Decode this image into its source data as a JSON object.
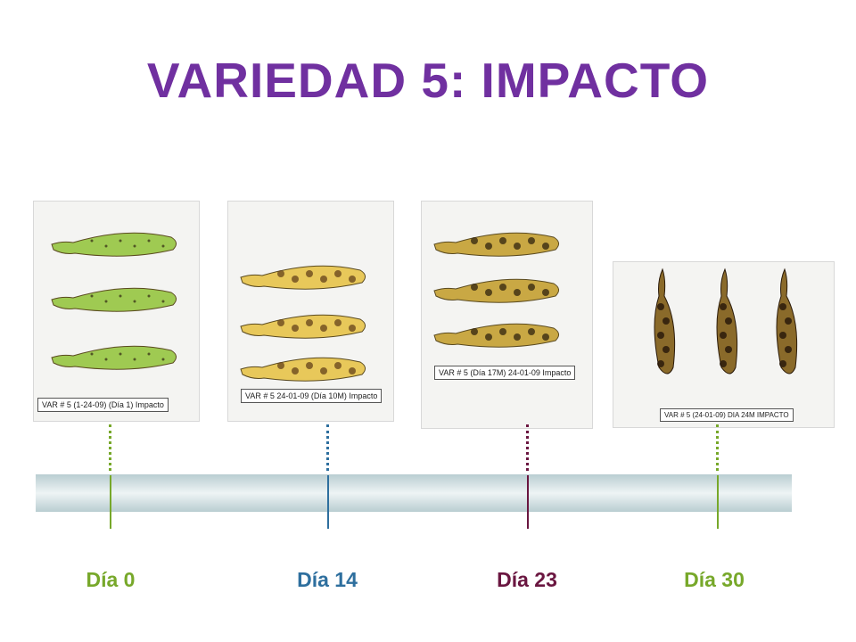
{
  "title": "VARIEDAD 5: IMPACTO",
  "photos": [
    {
      "label": "VAR # 5 (1-24-09) (Día 1) Impacto",
      "banana_color": "#9fca52",
      "spot_color": "#3d3a1a"
    },
    {
      "label": "VAR # 5 24-01-09 (Día 10M) Impacto",
      "banana_color": "#e8c85a",
      "spot_color": "#6b4a1e"
    },
    {
      "label": "VAR # 5 (Día 17M) 24-01-09 Impacto",
      "banana_color": "#c9a844",
      "spot_color": "#3a2a12"
    },
    {
      "label": "VAR # 5 (24-01-09) DIA 24M IMPACTO",
      "banana_color": "#8a6a2a",
      "spot_color": "#2a1a0a"
    }
  ],
  "timeline": {
    "markers": [
      {
        "label": "Día 0",
        "color": "#77a82a"
      },
      {
        "label": "Día 14",
        "color": "#2e6f9e"
      },
      {
        "label": "Día 23",
        "color": "#6a1640"
      },
      {
        "label": "Día 30",
        "color": "#77a82a"
      }
    ]
  },
  "colors": {
    "title": "#7030a0"
  }
}
